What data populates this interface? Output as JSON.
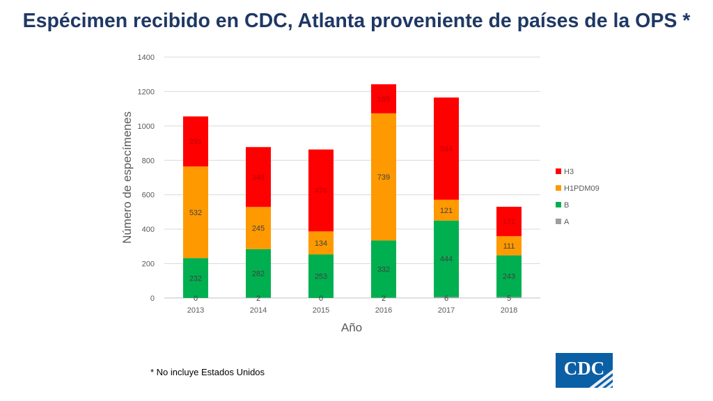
{
  "title": "Espécimen recibido en CDC, Atlanta proveniente de países de la OPS *",
  "footnote": "* No incluye Estados Unidos",
  "logo": {
    "text": "CDC",
    "bg_color": "#0b5fa5"
  },
  "chart_data": {
    "type": "bar",
    "stacked": true,
    "categories": [
      "2013",
      "2014",
      "2015",
      "2016",
      "2017",
      "2018"
    ],
    "series": [
      {
        "name": "A",
        "color": "#9e9e9e",
        "values": [
          0,
          2,
          0,
          2,
          6,
          5
        ]
      },
      {
        "name": "B",
        "color": "#00b050",
        "values": [
          232,
          282,
          253,
          332,
          444,
          243
        ]
      },
      {
        "name": "H1PDM09",
        "color": "#ff9900",
        "values": [
          532,
          245,
          134,
          739,
          121,
          111
        ]
      },
      {
        "name": "H3",
        "color": "#ff0000",
        "values": [
          291,
          348,
          476,
          169,
          594,
          171
        ]
      }
    ],
    "label_display": [
      [
        "0",
        "232",
        "532",
        "291"
      ],
      [
        "2",
        "282",
        "245",
        "348"
      ],
      [
        "0",
        "253",
        "134",
        "476"
      ],
      [
        "2",
        "332",
        "739",
        "169"
      ],
      [
        "6",
        "444",
        "121",
        "594"
      ],
      [
        "5",
        "243",
        "111",
        "171"
      ]
    ],
    "title": "",
    "xlabel": "Año",
    "ylabel": "Número de especímenes",
    "ylim": [
      0,
      1400
    ],
    "yticks": [
      0,
      200,
      400,
      600,
      800,
      1000,
      1200,
      1400
    ],
    "grid": true,
    "legend": [
      "H3",
      "H1PDM09",
      "B",
      "A"
    ],
    "legend_position": "right"
  }
}
